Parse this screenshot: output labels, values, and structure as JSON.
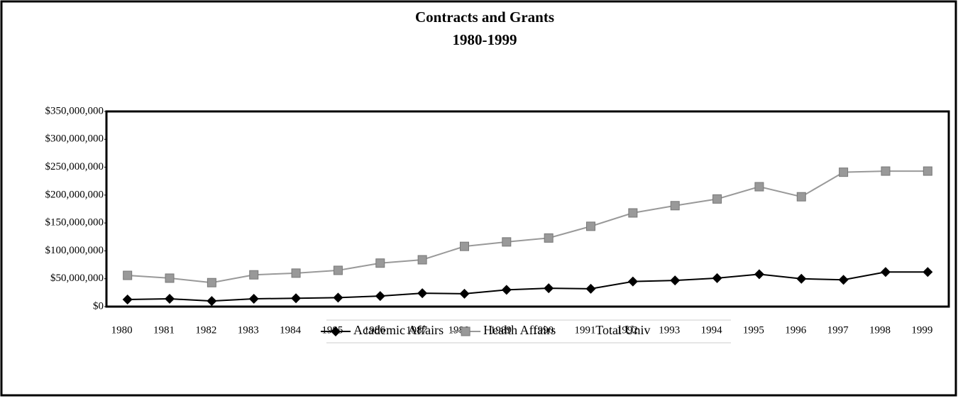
{
  "chart_data": {
    "type": "line",
    "title": "Contracts and Grants",
    "subtitle": "1980-1999",
    "categories": [
      "1980",
      "1981",
      "1982",
      "1983",
      "1984",
      "1985",
      "1986",
      "1987",
      "1988",
      "1989",
      "1990",
      "1991",
      "1992",
      "1993",
      "1994",
      "1995",
      "1996",
      "1997",
      "1998",
      "1999"
    ],
    "series": [
      {
        "name": "Academic Affairs",
        "color": "#000000",
        "marker": "diamond",
        "values": [
          12700000,
          14000000,
          10000000,
          14000000,
          15000000,
          16000000,
          19000000,
          24000000,
          23000000,
          30000000,
          33000000,
          32000000,
          45000000,
          47000000,
          51000000,
          58000000,
          50000000,
          48000000,
          62000000,
          62000000
        ]
      },
      {
        "name": "Health Affairs",
        "color": "#999999",
        "marker": "square",
        "values": [
          56000000,
          51000000,
          43000000,
          57000000,
          60000000,
          65000000,
          78000000,
          84000000,
          108000000,
          116000000,
          123000000,
          144000000,
          168000000,
          181000000,
          193000000,
          215000000,
          197000000,
          241000000,
          243000000,
          243000000
        ]
      },
      {
        "name": "Total Univ",
        "color": null,
        "values": [
          null,
          null,
          null,
          null,
          null,
          null,
          null,
          null,
          null,
          null,
          null,
          null,
          null,
          null,
          null,
          null,
          null,
          null,
          null,
          null
        ]
      }
    ],
    "ylim": [
      0,
      350000000
    ],
    "yticks": [
      {
        "value": 0,
        "label": "$0"
      },
      {
        "value": 50000000,
        "label": "$50,000,000"
      },
      {
        "value": 100000000,
        "label": "$100,000,000"
      },
      {
        "value": 150000000,
        "label": "$150,000,000"
      },
      {
        "value": 200000000,
        "label": "$200,000,000"
      },
      {
        "value": 250000000,
        "label": "$250,000,000"
      },
      {
        "value": 300000000,
        "label": "$300,000,000"
      },
      {
        "value": 350000000,
        "label": "$350,000,000"
      }
    ],
    "legend": "bottom"
  }
}
